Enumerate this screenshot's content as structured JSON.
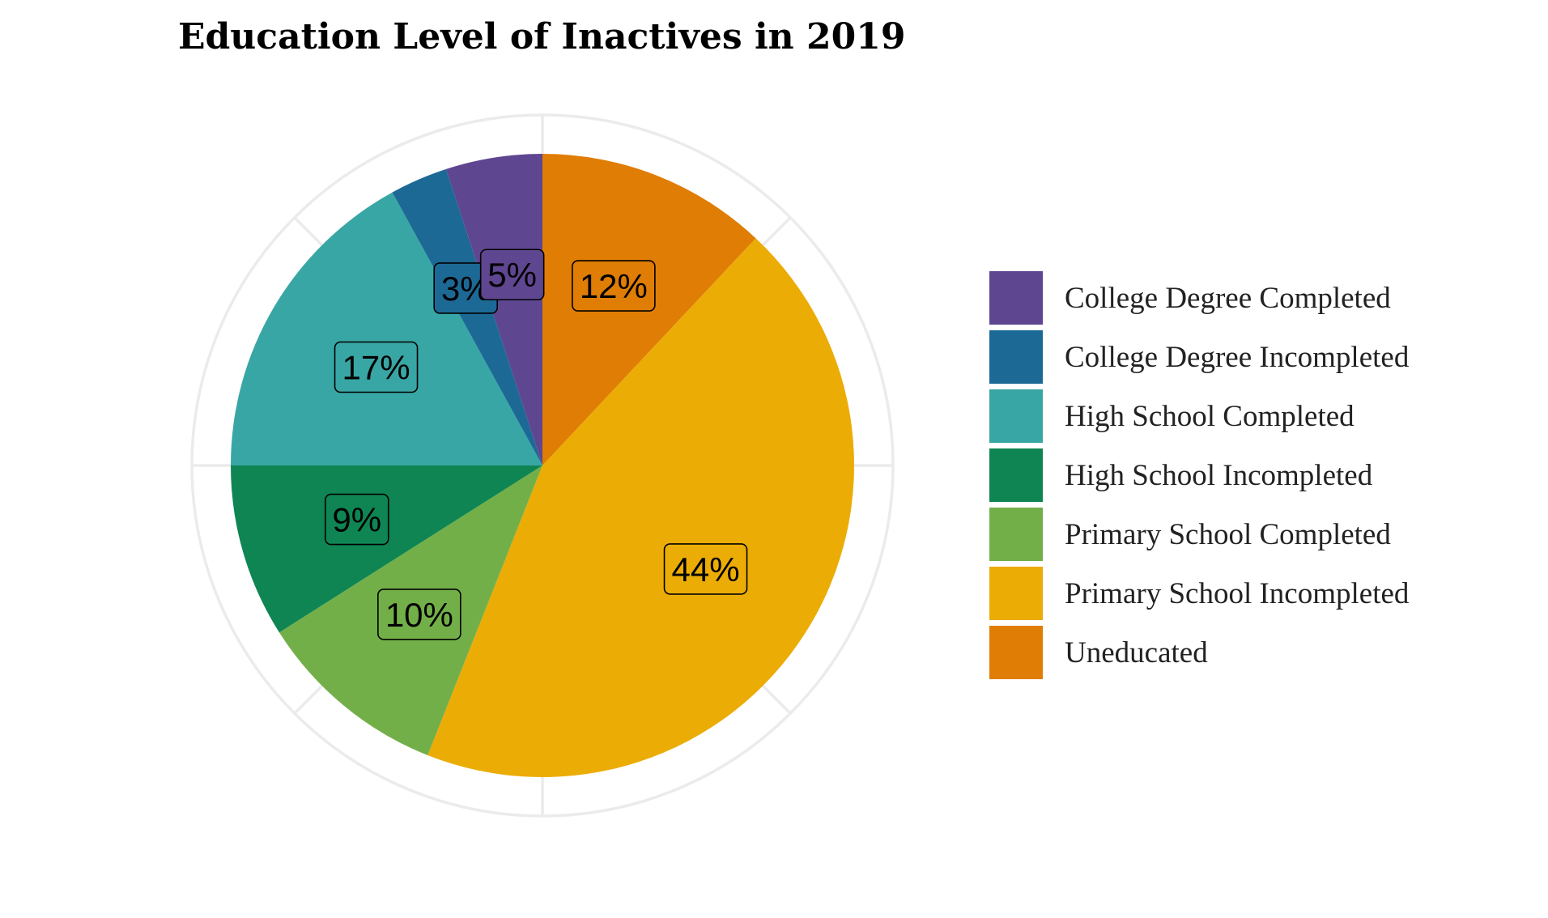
{
  "chart_data": {
    "type": "pie",
    "title": "Education Level of Inactives in 2019",
    "legend_position": "right",
    "grid": true,
    "start_angle_deg": 0,
    "direction": "clockwise",
    "slices": [
      {
        "category": "Uneducated",
        "value": 12,
        "label": "12%",
        "color": "#E07D04"
      },
      {
        "category": "Primary School Incompleted",
        "value": 44,
        "label": "44%",
        "color": "#EBAC06"
      },
      {
        "category": "Primary School Completed",
        "value": 10,
        "label": "10%",
        "color": "#73AF48"
      },
      {
        "category": "High School Incompleted",
        "value": 9,
        "label": "9%",
        "color": "#0F8554"
      },
      {
        "category": "High School Completed",
        "value": 17,
        "label": "17%",
        "color": "#38A6A5"
      },
      {
        "category": "College Degree Incompleted",
        "value": 3,
        "label": "3%",
        "color": "#1D6996"
      },
      {
        "category": "College Degree Completed",
        "value": 5,
        "label": "5%",
        "color": "#5F4690"
      }
    ],
    "legend": [
      {
        "label": "College Degree Completed",
        "color": "#5F4690"
      },
      {
        "label": "College Degree Incompleted",
        "color": "#1D6996"
      },
      {
        "label": "High School Completed",
        "color": "#38A6A5"
      },
      {
        "label": "High School Incompleted",
        "color": "#0F8554"
      },
      {
        "label": "Primary School Completed",
        "color": "#73AF48"
      },
      {
        "label": "Primary School Incompleted",
        "color": "#EBAC06"
      },
      {
        "label": "Uneducated",
        "color": "#E07D04"
      }
    ]
  }
}
